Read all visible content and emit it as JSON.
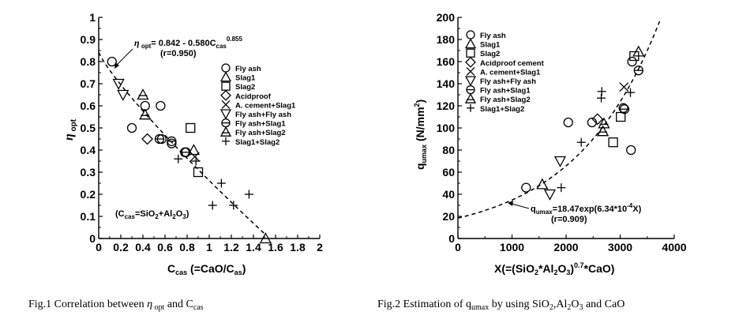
{
  "chart_data": [
    {
      "type": "scatter",
      "ylabel": "η opt",
      "xlabel": "Ccas (=CaO/Cas)",
      "xlim": [
        0,
        2
      ],
      "ylim": [
        0,
        1
      ],
      "xticks": [
        "0",
        "0.2",
        "0.4",
        "0.6",
        "0.8",
        "1",
        "1.2",
        "1.4",
        "1.6",
        "1.8",
        "2"
      ],
      "yticks": [
        "0",
        "0.1",
        "0.2",
        "0.3",
        "0.4",
        "0.5",
        "0.6",
        "0.7",
        "0.8",
        "0.9",
        "1"
      ],
      "legend_position": "right",
      "annotation": {
        "equation": "η opt= 0.842 - 0.580Ccas0.855",
        "r": "(r=0.950)",
        "note": "(Ccas=SiO2+Al2O3)"
      },
      "fit_curve": {
        "style": "dashed",
        "formula": "0.842 - 0.580*x^0.855",
        "x_range": [
          0,
          1.5
        ]
      },
      "series": [
        {
          "name": "Fly ash",
          "marker": "circle",
          "points": [
            [
              0.12,
              0.8
            ],
            [
              0.3,
              0.5
            ],
            [
              0.42,
              0.6
            ],
            [
              0.56,
              0.6
            ],
            [
              0.57,
              0.45
            ],
            [
              0.66,
              0.43
            ],
            [
              0.78,
              0.39
            ]
          ]
        },
        {
          "name": "Slag1",
          "marker": "triangle-up",
          "points": [
            [
              0.86,
              0.4
            ],
            [
              1.51,
              0.0
            ]
          ]
        },
        {
          "name": "Slag2",
          "marker": "square",
          "points": [
            [
              0.83,
              0.5
            ],
            [
              0.9,
              0.3
            ]
          ]
        },
        {
          "name": "Acidproof",
          "marker": "diamond",
          "points": [
            [
              0.44,
              0.45
            ]
          ]
        },
        {
          "name": "A. cement+Slag1",
          "marker": "x",
          "points": [
            [
              0.87,
              0.37
            ]
          ]
        },
        {
          "name": "Fly ash+Fly ash",
          "marker": "triangle-down",
          "points": [
            [
              0.18,
              0.7
            ],
            [
              0.22,
              0.65
            ]
          ]
        },
        {
          "name": "Fly ash+Slag1",
          "marker": "circle-bar",
          "points": [
            [
              0.55,
              0.45
            ],
            [
              0.66,
              0.44
            ],
            [
              0.79,
              0.39
            ]
          ]
        },
        {
          "name": "Fly ash+Slag2",
          "marker": "triangle-bar",
          "points": [
            [
              0.4,
              0.65
            ],
            [
              0.42,
              0.56
            ]
          ]
        },
        {
          "name": "Slag1+Slag2",
          "marker": "plus",
          "points": [
            [
              0.72,
              0.36
            ],
            [
              0.88,
              0.35
            ],
            [
              1.03,
              0.15
            ],
            [
              1.11,
              0.25
            ],
            [
              1.22,
              0.15
            ],
            [
              1.36,
              0.2
            ]
          ]
        }
      ],
      "caption": "Fig.1 Correlation between η opt and Ccas"
    },
    {
      "type": "scatter",
      "ylabel": "qumax (N/mm2)",
      "xlabel": "X(=(SiO2*Al2O3)0.7*CaO)",
      "xlim": [
        0,
        4000
      ],
      "ylim": [
        0,
        200
      ],
      "xticks": [
        "0",
        "1000",
        "2000",
        "3000",
        "4000"
      ],
      "yticks": [
        "0",
        "20",
        "40",
        "60",
        "80",
        "100",
        "120",
        "140",
        "160",
        "180",
        "200"
      ],
      "legend_position": "top-left",
      "annotation": {
        "equation": "qumax=18.47exp(6.34*10-4X)",
        "r": "(r=0.909)"
      },
      "fit_curve": {
        "style": "dashed",
        "formula": "18.47*exp(6.34e-4*x)",
        "x_range": [
          0,
          3740
        ]
      },
      "series": [
        {
          "name": "Fly ash",
          "marker": "circle",
          "points": [
            [
              1260,
              46
            ],
            [
              2040,
              105
            ],
            [
              2480,
              105
            ],
            [
              3220,
              160
            ],
            [
              3060,
              118
            ],
            [
              3200,
              80
            ]
          ]
        },
        {
          "name": "Slag1",
          "marker": "triangle-up",
          "points": [
            [
              1560,
              49
            ],
            [
              3340,
              169
            ]
          ]
        },
        {
          "name": "Slag2",
          "marker": "square",
          "points": [
            [
              2870,
              87
            ],
            [
              3010,
              110
            ],
            [
              3260,
              165
            ]
          ]
        },
        {
          "name": "Acidproof cement",
          "marker": "diamond",
          "points": [
            [
              2580,
              108
            ]
          ]
        },
        {
          "name": "A. cement+Slag1",
          "marker": "x",
          "points": [
            [
              3070,
              137
            ]
          ]
        },
        {
          "name": "Fly ash+Fly ash",
          "marker": "triangle-down",
          "points": [
            [
              1700,
              40
            ],
            [
              1890,
              70
            ]
          ]
        },
        {
          "name": "Fly ash+Slag1",
          "marker": "circle-bar",
          "points": [
            [
              3080,
              117
            ],
            [
              3340,
              152
            ]
          ]
        },
        {
          "name": "Fly ash+Slag2",
          "marker": "triangle-bar",
          "points": [
            [
              2700,
              104
            ],
            [
              2680,
              97
            ]
          ]
        },
        {
          "name": "Slag1+Slag2",
          "marker": "plus",
          "points": [
            [
              1910,
              46
            ],
            [
              2280,
              87
            ],
            [
              2650,
              127
            ],
            [
              2660,
              133
            ],
            [
              3190,
              132
            ]
          ]
        }
      ],
      "caption": "Fig.2 Estimation of qumax by using SiO2,Al2O3 and CaO"
    }
  ]
}
